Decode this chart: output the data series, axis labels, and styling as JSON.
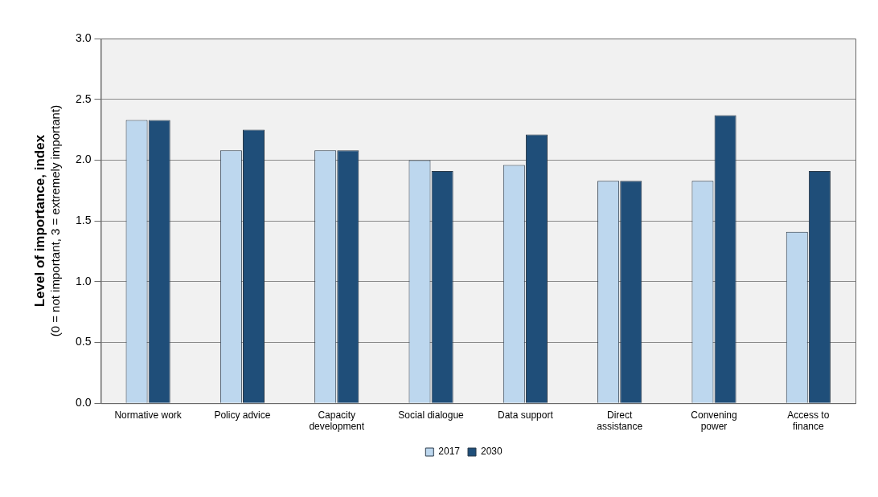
{
  "chart_data": {
    "type": "bar",
    "ylabel": "Level of importance, index\n(0 = not important, 3 = extremely important)",
    "categories": [
      "Normative work",
      "Policy advice",
      "Capacity development",
      "Social dialogue",
      "Data support",
      "Direct assistance",
      "Convening power",
      "Access to finance"
    ],
    "series": [
      {
        "name": "2017",
        "color": "#bdd7ee",
        "values": [
          2.33,
          2.08,
          2.08,
          2.0,
          1.96,
          1.83,
          1.83,
          1.41
        ]
      },
      {
        "name": "2030",
        "color": "#1f4e79",
        "values": [
          2.33,
          2.25,
          2.08,
          1.91,
          2.21,
          1.83,
          2.37,
          1.91
        ]
      }
    ],
    "ylim": [
      0,
      3
    ],
    "yticks": [
      {
        "value": 0,
        "label": "0.0"
      },
      {
        "value": 0.5,
        "label": "0.5"
      },
      {
        "value": 1,
        "label": "1.0"
      },
      {
        "value": 1.5,
        "label": "1.5"
      },
      {
        "value": 2,
        "label": "2.0"
      },
      {
        "value": 2.5,
        "label": "2.5"
      },
      {
        "value": 3,
        "label": "3.0"
      }
    ],
    "grid": "y",
    "legend": "bottom"
  }
}
